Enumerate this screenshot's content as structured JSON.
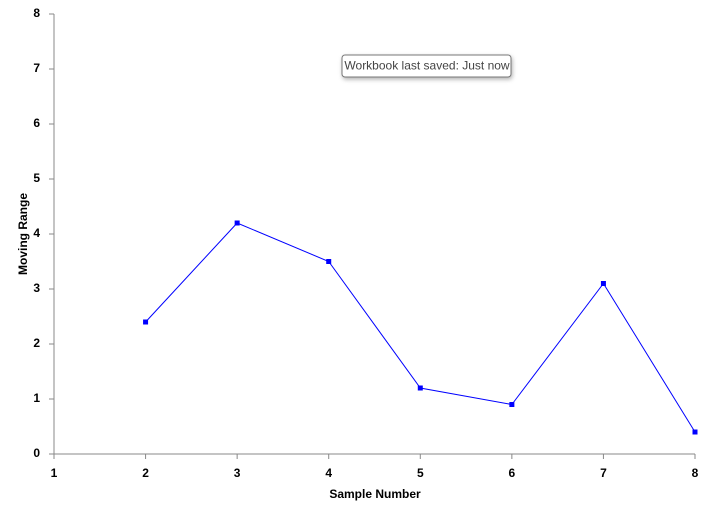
{
  "chart_data": {
    "type": "line",
    "x_label": "Sample Number",
    "y_label": "Moving Range",
    "annotation": "Workbook last saved: Just now",
    "x": [
      2,
      3,
      4,
      5,
      6,
      7,
      8
    ],
    "series": [
      {
        "color": "#0000ff",
        "values": [
          2.4,
          4.2,
          3.5,
          1.2,
          0.9,
          3.1,
          0.4
        ]
      }
    ],
    "xlim": [
      1,
      8
    ],
    "xticks": [
      1,
      2,
      3,
      4,
      5,
      6,
      7,
      8
    ],
    "ylim": [
      0,
      8
    ],
    "yticks": [
      0,
      1,
      2,
      3,
      4,
      5,
      6,
      7,
      8
    ],
    "grid": false
  }
}
